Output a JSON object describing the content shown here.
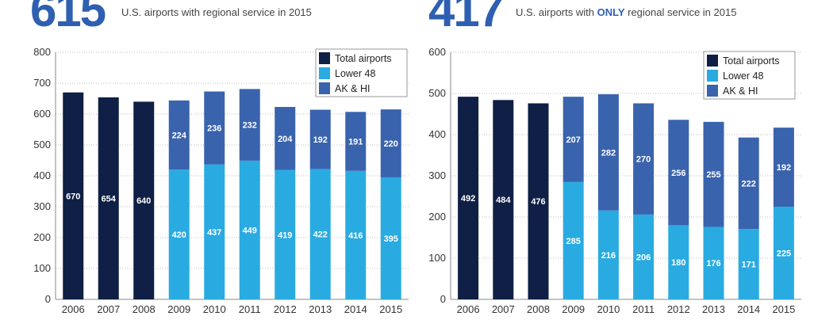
{
  "headline_left": {
    "number": "615",
    "text": "U.S. airports with regional service in 2015"
  },
  "headline_right": {
    "number": "417",
    "text_pre": "U.S. airports with ",
    "text_em": "ONLY",
    "text_post": " regional service in 2015"
  },
  "colors": {
    "total": "#0f1f45",
    "lower48": "#29abe2",
    "akhi": "#3a63ad"
  },
  "chart_data": [
    {
      "type": "bar",
      "stacked": true,
      "categories": [
        "2006",
        "2007",
        "2008",
        "2009",
        "2010",
        "2011",
        "2012",
        "2013",
        "2014",
        "2015"
      ],
      "series": [
        {
          "name": "Total airports",
          "values": [
            670,
            654,
            640,
            null,
            null,
            null,
            null,
            null,
            null,
            null
          ]
        },
        {
          "name": "Lower 48",
          "values": [
            null,
            null,
            null,
            420,
            437,
            449,
            419,
            422,
            416,
            395
          ]
        },
        {
          "name": "AK & HI",
          "values": [
            null,
            null,
            null,
            224,
            236,
            232,
            204,
            192,
            191,
            220
          ]
        }
      ],
      "ylim": [
        0,
        800
      ],
      "yticks": [
        0,
        100,
        200,
        300,
        400,
        500,
        600,
        700,
        800
      ],
      "grid": true,
      "legend": "top-right"
    },
    {
      "type": "bar",
      "stacked": true,
      "categories": [
        "2006",
        "2007",
        "2008",
        "2009",
        "2010",
        "2011",
        "2012",
        "2013",
        "2014",
        "2015"
      ],
      "series": [
        {
          "name": "Total airports",
          "values": [
            492,
            484,
            476,
            null,
            null,
            null,
            null,
            null,
            null,
            null
          ]
        },
        {
          "name": "Lower 48",
          "values": [
            null,
            null,
            null,
            285,
            216,
            206,
            180,
            176,
            171,
            225
          ]
        },
        {
          "name": "AK & HI",
          "values": [
            null,
            null,
            null,
            207,
            282,
            270,
            256,
            255,
            222,
            192
          ]
        }
      ],
      "ylim": [
        0,
        600
      ],
      "yticks": [
        0,
        100,
        200,
        300,
        400,
        500,
        600
      ],
      "grid": true,
      "legend": "top-right"
    }
  ]
}
